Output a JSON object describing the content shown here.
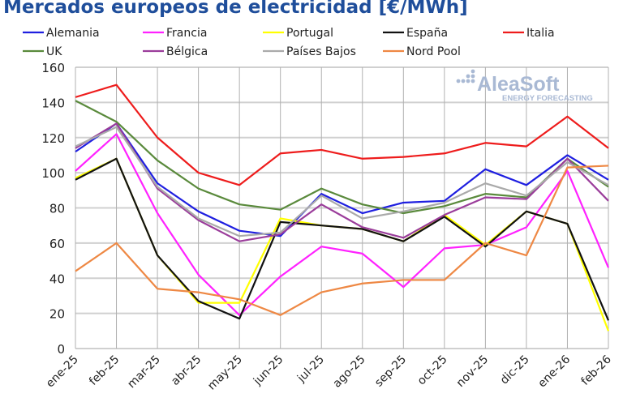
{
  "chart_data": {
    "type": "line",
    "title": "Mercados europeos de electricidad [€/MWh]",
    "categories": [
      "ene-25",
      "feb-25",
      "mar-25",
      "abr-25",
      "may-25",
      "jun-25",
      "jul-25",
      "ago-25",
      "sep-25",
      "oct-25",
      "nov-25",
      "dic-25",
      "ene-26",
      "feb-26"
    ],
    "ylim": [
      0,
      160
    ],
    "yticks": [
      0,
      20,
      40,
      60,
      80,
      100,
      120,
      140,
      160
    ],
    "grid": true,
    "legend_placement": "top",
    "series": [
      {
        "name": "Alemania",
        "color": "#1f1fe0",
        "values": [
          112,
          128,
          94,
          78,
          67,
          64,
          88,
          77,
          83,
          84,
          102,
          93,
          110,
          96
        ]
      },
      {
        "name": "Francia",
        "color": "#ff22ff",
        "values": [
          101,
          122,
          77,
          42,
          19,
          41,
          58,
          54,
          35,
          57,
          59,
          69,
          101,
          46
        ]
      },
      {
        "name": "Portugal",
        "color": "#ffff00",
        "values": [
          97,
          108,
          53,
          26,
          26,
          74,
          70,
          68,
          61,
          76,
          59,
          78,
          71,
          10
        ]
      },
      {
        "name": "España",
        "color": "#111111",
        "values": [
          96,
          108,
          53,
          27,
          17,
          72,
          70,
          68,
          61,
          75,
          58,
          78,
          71,
          16
        ]
      },
      {
        "name": "Italia",
        "color": "#ee1c1c",
        "values": [
          143,
          150,
          120,
          100,
          93,
          111,
          113,
          108,
          109,
          111,
          117,
          115,
          132,
          114
        ]
      },
      {
        "name": "UK",
        "color": "#5a8a3c",
        "values": [
          141,
          129,
          107,
          91,
          82,
          79,
          91,
          82,
          77,
          81,
          88,
          86,
          108,
          92
        ]
      },
      {
        "name": "Bélgica",
        "color": "#9b3d9b",
        "values": [
          114,
          128,
          91,
          73,
          61,
          65,
          82,
          69,
          63,
          76,
          86,
          85,
          108,
          84
        ]
      },
      {
        "name": "Países Bajos",
        "color": "#aaaaaa",
        "values": [
          115,
          126,
          92,
          74,
          64,
          66,
          87,
          74,
          78,
          83,
          94,
          87,
          106,
          93
        ]
      },
      {
        "name": "Nord Pool",
        "color": "#ee8844",
        "values": [
          44,
          60,
          34,
          32,
          28,
          19,
          32,
          37,
          39,
          39,
          60,
          53,
          103,
          104
        ]
      }
    ]
  },
  "watermark": {
    "brand": "AleaSoft",
    "tagline": "ENERGY FORECASTING"
  }
}
